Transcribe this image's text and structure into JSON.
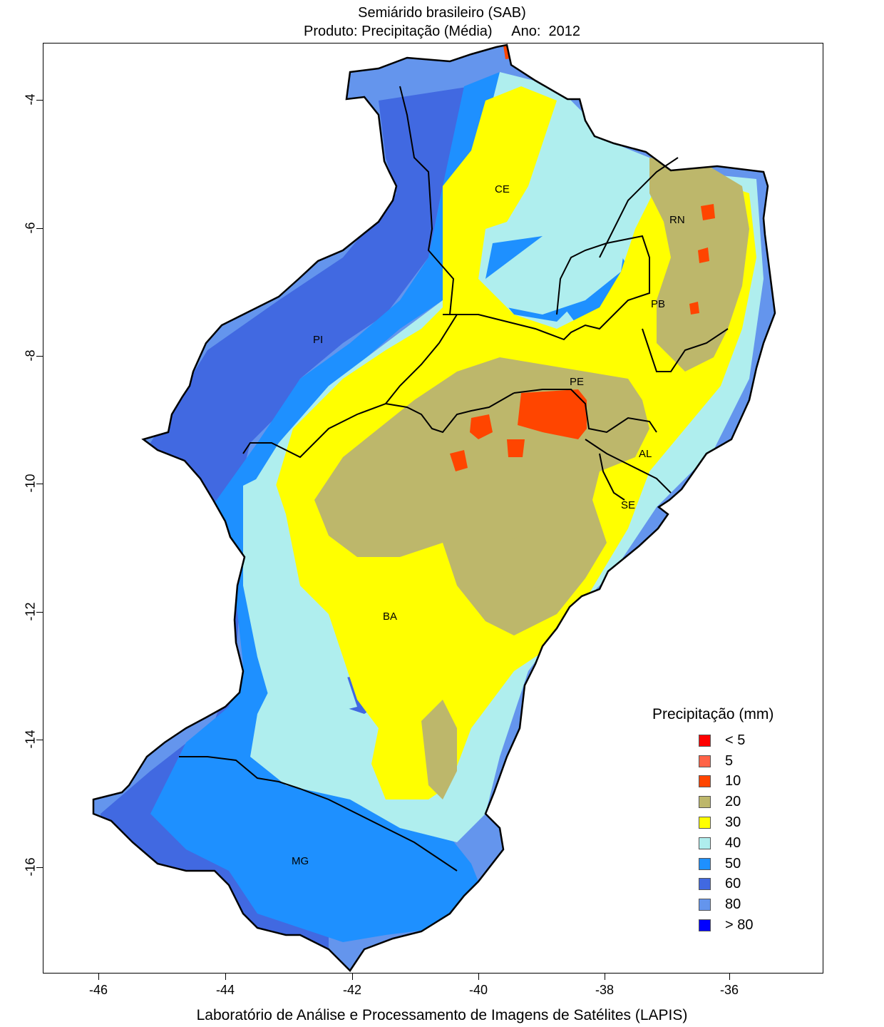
{
  "title": "Semiárido brasileiro (SAB)",
  "subtitle_product": "Produto: Precipitação (Média)",
  "subtitle_year": "Ano:  2012",
  "footer": "Laboratório de Análise e Processamento de Imagens de Satélites (LAPIS)",
  "x_ticks": [
    "-46",
    "-44",
    "-42",
    "-40",
    "-38",
    "-36"
  ],
  "y_ticks": [
    "-4",
    "-6",
    "-8",
    "-10",
    "-12",
    "-14",
    "-16"
  ],
  "legend": {
    "title": "Precipitação (mm)",
    "items": [
      {
        "label": "< 5",
        "color": "#ff0000"
      },
      {
        "label": "5",
        "color": "#ff6347"
      },
      {
        "label": "10",
        "color": "#ff4500"
      },
      {
        "label": "20",
        "color": "#bdb76b"
      },
      {
        "label": "30",
        "color": "#ffff00"
      },
      {
        "label": "40",
        "color": "#afeeee"
      },
      {
        "label": "50",
        "color": "#1e90ff"
      },
      {
        "label": "60",
        "color": "#4169e1"
      },
      {
        "label": "80",
        "color": "#6495ed"
      },
      {
        "label": "> 80",
        "color": "#0000ff"
      }
    ]
  },
  "states": [
    {
      "label": "CE"
    },
    {
      "label": "RN"
    },
    {
      "label": "PB"
    },
    {
      "label": "PI"
    },
    {
      "label": "PE"
    },
    {
      "label": "AL"
    },
    {
      "label": "SE"
    },
    {
      "label": "BA"
    },
    {
      "label": "MG"
    }
  ],
  "map_info": {
    "x_range_deg": [
      -47,
      -34.8
    ],
    "y_range_deg": [
      -17.7,
      -3.1
    ]
  }
}
